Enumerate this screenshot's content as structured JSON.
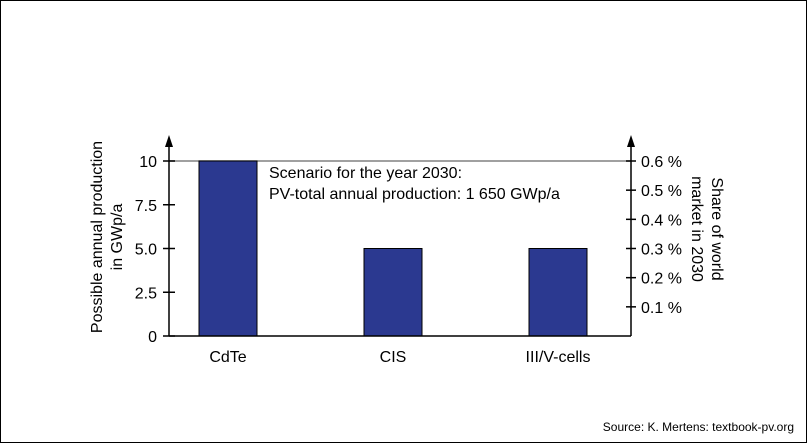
{
  "chart_data": {
    "type": "bar",
    "categories": [
      "CdTe",
      "CIS",
      "III/V-cells"
    ],
    "values": [
      10.0,
      5.0,
      5.0
    ],
    "ylabel_lines": [
      "Possible annual production",
      "in GWp/a"
    ],
    "ylim": [
      0,
      10
    ],
    "yticks": [
      "0",
      "2.5",
      "5.0",
      "7.5",
      "10"
    ],
    "y2label_lines": [
      "Share of world",
      "market in 2030"
    ],
    "y2ticks": [
      "0.1 %",
      "0.2 %",
      "0.3 %",
      "0.4 %",
      "0.5 %",
      "0.6 %"
    ],
    "annotation_lines": [
      "Scenario for the year 2030:",
      "PV-total annual production: 1 650 GWp/a"
    ],
    "bar_color": "#2b3990",
    "reference_line_color": "#808080",
    "grid": false,
    "legend": "none"
  },
  "source": "Source: K. Mertens: textbook-pv.org"
}
